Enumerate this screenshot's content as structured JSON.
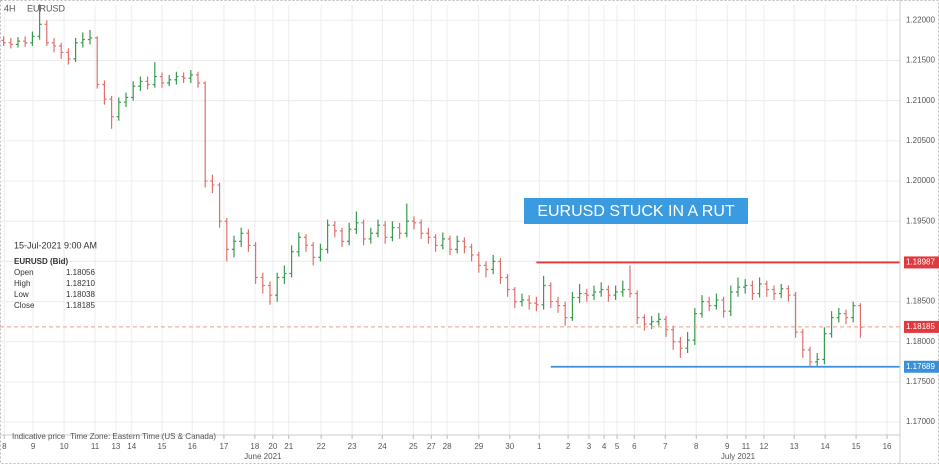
{
  "chart_data": {
    "type": "ohlc",
    "timeframe": "4H",
    "symbol": "EURUSD",
    "annotation": "EURUSD STUCK IN A RUT",
    "footer": [
      "Indicative price",
      "Time Zone: Eastern Time (US & Canada)"
    ],
    "info": {
      "datetime": "15-Jul-2021 9:00 AM",
      "instrument": "EURUSD (Bid)",
      "rows": [
        {
          "label": "Open",
          "value": "1.18056"
        },
        {
          "label": "High",
          "value": "1.18210"
        },
        {
          "label": "Low",
          "value": "1.18038"
        },
        {
          "label": "Close",
          "value": "1.18185"
        }
      ]
    },
    "up_color": "#3a9a4e",
    "down_color": "#e0706e",
    "grid": true,
    "ylim": [
      1.1684,
      1.2219
    ],
    "yticks": [
      {
        "value": 1.17,
        "label": "1.17000"
      },
      {
        "value": 1.175,
        "label": "1.17500"
      },
      {
        "value": 1.18,
        "label": "1.18000"
      },
      {
        "value": 1.185,
        "label": "1.18500"
      },
      {
        "value": 1.19,
        "label": "1.19000"
      },
      {
        "value": 1.195,
        "label": "1.19500"
      },
      {
        "value": 1.2,
        "label": "1.20000"
      },
      {
        "value": 1.205,
        "label": "1.20500"
      },
      {
        "value": 1.21,
        "label": "1.21000"
      },
      {
        "value": 1.215,
        "label": "1.21500"
      },
      {
        "value": 1.22,
        "label": "1.22000"
      }
    ],
    "xlim": [
      -0.5,
      124.5
    ],
    "xticks": [
      {
        "value": 0.1,
        "label": "8"
      },
      {
        "value": 4.1,
        "label": "9"
      },
      {
        "value": 8.4,
        "label": "10"
      },
      {
        "value": 12.7,
        "label": "11"
      },
      {
        "value": 15.6,
        "label": "13"
      },
      {
        "value": 17.8,
        "label": "14"
      },
      {
        "value": 22,
        "label": "15"
      },
      {
        "value": 26.2,
        "label": "16"
      },
      {
        "value": 30.6,
        "label": "17"
      },
      {
        "value": 34.9,
        "label": "18"
      },
      {
        "value": 37.4,
        "label": "20"
      },
      {
        "value": 39.6,
        "label": "21"
      },
      {
        "value": 44.1,
        "label": "22"
      },
      {
        "value": 48.4,
        "label": "23"
      },
      {
        "value": 52.6,
        "label": "24"
      },
      {
        "value": 56.9,
        "label": "25"
      },
      {
        "value": 59.4,
        "label": "27"
      },
      {
        "value": 61.6,
        "label": "28"
      },
      {
        "value": 66,
        "label": "29"
      },
      {
        "value": 70.3,
        "label": "30"
      },
      {
        "value": 74.4,
        "label": "1"
      },
      {
        "value": 78.4,
        "label": "2"
      },
      {
        "value": 81.3,
        "label": "3"
      },
      {
        "value": 83.4,
        "label": "4"
      },
      {
        "value": 85.2,
        "label": "5"
      },
      {
        "value": 87.6,
        "label": "6"
      },
      {
        "value": 91.9,
        "label": "7"
      },
      {
        "value": 96.2,
        "label": "8"
      },
      {
        "value": 100.5,
        "label": "9"
      },
      {
        "value": 103.1,
        "label": "11"
      },
      {
        "value": 105.6,
        "label": "12"
      },
      {
        "value": 109.8,
        "label": "13"
      },
      {
        "value": 114.1,
        "label": "14"
      },
      {
        "value": 118.4,
        "label": "15"
      },
      {
        "value": 122.7,
        "label": "16"
      }
    ],
    "months": [
      {
        "value": 36,
        "label": "June 2021"
      },
      {
        "value": 102,
        "label": "July 2021"
      }
    ],
    "levels": [
      {
        "value": 1.18987,
        "color": "#e0393e",
        "x_start": 74,
        "style": "solid"
      },
      {
        "value": 1.18185,
        "color": "#e0393e",
        "style": "dashed"
      },
      {
        "value": 1.17689,
        "color": "#3a8fd8",
        "x_start": 76,
        "style": "solid"
      }
    ],
    "candles": [
      [
        1.2175,
        1.218,
        1.2168,
        1.2172
      ],
      [
        1.2172,
        1.2178,
        1.2165,
        1.217
      ],
      [
        1.217,
        1.2179,
        1.2166,
        1.2174
      ],
      [
        1.2174,
        1.218,
        1.2167,
        1.2172
      ],
      [
        1.2172,
        1.2186,
        1.2168,
        1.218
      ],
      [
        1.218,
        1.222,
        1.2176,
        1.2195
      ],
      [
        1.2195,
        1.22,
        1.2168,
        1.2172
      ],
      [
        1.2172,
        1.2178,
        1.216,
        1.2168
      ],
      [
        1.2168,
        1.2172,
        1.2152,
        1.216
      ],
      [
        1.216,
        1.2165,
        1.2145,
        1.2152
      ],
      [
        1.2152,
        1.2178,
        1.2148,
        1.2172
      ],
      [
        1.2172,
        1.2185,
        1.2166,
        1.2176
      ],
      [
        1.2176,
        1.2188,
        1.217,
        1.2178
      ],
      [
        1.2178,
        1.218,
        1.2115,
        1.212
      ],
      [
        1.212,
        1.2125,
        1.2095,
        1.2102
      ],
      [
        1.2102,
        1.2106,
        1.2065,
        1.208
      ],
      [
        1.208,
        1.2104,
        1.2075,
        1.2098
      ],
      [
        1.2098,
        1.211,
        1.2092,
        1.2104
      ],
      [
        1.2104,
        1.2124,
        1.21,
        1.2118
      ],
      [
        1.2118,
        1.213,
        1.2112,
        1.2124
      ],
      [
        1.2124,
        1.213,
        1.2114,
        1.212
      ],
      [
        1.212,
        1.2148,
        1.2116,
        1.213
      ],
      [
        1.213,
        1.2135,
        1.2116,
        1.2122
      ],
      [
        1.2122,
        1.2132,
        1.2118,
        1.2126
      ],
      [
        1.2126,
        1.2136,
        1.212,
        1.213
      ],
      [
        1.213,
        1.2135,
        1.2122,
        1.2128
      ],
      [
        1.2128,
        1.2138,
        1.2122,
        1.2132
      ],
      [
        1.2132,
        1.2136,
        1.2116,
        1.2122
      ],
      [
        1.2122,
        1.2124,
        1.1992,
        1.2
      ],
      [
        1.2,
        1.2008,
        1.1985,
        1.1995
      ],
      [
        1.1995,
        1.1998,
        1.1942,
        1.195
      ],
      [
        1.195,
        1.1954,
        1.19,
        1.1915
      ],
      [
        1.1915,
        1.1932,
        1.1905,
        1.1925
      ],
      [
        1.1925,
        1.1942,
        1.1918,
        1.1935
      ],
      [
        1.1935,
        1.194,
        1.1912,
        1.192
      ],
      [
        1.192,
        1.1924,
        1.1872,
        1.188
      ],
      [
        1.188,
        1.1886,
        1.186,
        1.187
      ],
      [
        1.187,
        1.1875,
        1.1846,
        1.1858
      ],
      [
        1.1858,
        1.1886,
        1.185,
        1.188
      ],
      [
        1.188,
        1.1895,
        1.1872,
        1.1885
      ],
      [
        1.1885,
        1.192,
        1.188,
        1.1912
      ],
      [
        1.1912,
        1.1936,
        1.1906,
        1.193
      ],
      [
        1.193,
        1.1934,
        1.1912,
        1.192
      ],
      [
        1.192,
        1.1924,
        1.1895,
        1.1905
      ],
      [
        1.1905,
        1.1922,
        1.19,
        1.1915
      ],
      [
        1.1915,
        1.1952,
        1.191,
        1.1945
      ],
      [
        1.1945,
        1.195,
        1.193,
        1.1938
      ],
      [
        1.1938,
        1.1942,
        1.1918,
        1.1925
      ],
      [
        1.1925,
        1.1948,
        1.192,
        1.194
      ],
      [
        1.194,
        1.1962,
        1.1934,
        1.1948
      ],
      [
        1.1948,
        1.1952,
        1.192,
        1.1928
      ],
      [
        1.1928,
        1.1942,
        1.1922,
        1.1935
      ],
      [
        1.1935,
        1.1952,
        1.193,
        1.1945
      ],
      [
        1.1945,
        1.195,
        1.1922,
        1.193
      ],
      [
        1.193,
        1.195,
        1.1925,
        1.1942
      ],
      [
        1.1942,
        1.1948,
        1.1928,
        1.1935
      ],
      [
        1.1935,
        1.1972,
        1.193,
        1.195
      ],
      [
        1.195,
        1.1956,
        1.194,
        1.1948
      ],
      [
        1.1948,
        1.1952,
        1.1928,
        1.1935
      ],
      [
        1.1935,
        1.1942,
        1.1922,
        1.193
      ],
      [
        1.193,
        1.1934,
        1.1912,
        1.192
      ],
      [
        1.192,
        1.1936,
        1.1915,
        1.1928
      ],
      [
        1.1928,
        1.1932,
        1.1908,
        1.1915
      ],
      [
        1.1915,
        1.1932,
        1.191,
        1.1925
      ],
      [
        1.1925,
        1.193,
        1.191,
        1.1918
      ],
      [
        1.1918,
        1.1922,
        1.19,
        1.1908
      ],
      [
        1.1908,
        1.1912,
        1.1886,
        1.1895
      ],
      [
        1.1895,
        1.19,
        1.188,
        1.189
      ],
      [
        1.189,
        1.1908,
        1.1884,
        1.19
      ],
      [
        1.19,
        1.1904,
        1.1872,
        1.188
      ],
      [
        1.188,
        1.1884,
        1.1856,
        1.1865
      ],
      [
        1.1865,
        1.1868,
        1.1842,
        1.185
      ],
      [
        1.185,
        1.186,
        1.1844,
        1.1852
      ],
      [
        1.1852,
        1.1858,
        1.184,
        1.1848
      ],
      [
        1.1848,
        1.1856,
        1.1838,
        1.1846
      ],
      [
        1.1846,
        1.1882,
        1.184,
        1.187
      ],
      [
        1.187,
        1.1874,
        1.1842,
        1.185
      ],
      [
        1.185,
        1.1856,
        1.1836,
        1.1845
      ],
      [
        1.1845,
        1.185,
        1.182,
        1.183
      ],
      [
        1.183,
        1.1862,
        1.1826,
        1.1855
      ],
      [
        1.1855,
        1.1872,
        1.1848,
        1.186
      ],
      [
        1.186,
        1.1866,
        1.185,
        1.1858
      ],
      [
        1.1858,
        1.187,
        1.1852,
        1.1862
      ],
      [
        1.1862,
        1.1874,
        1.1856,
        1.1865
      ],
      [
        1.1865,
        1.187,
        1.185,
        1.1858
      ],
      [
        1.1858,
        1.187,
        1.1852,
        1.1862
      ],
      [
        1.1862,
        1.1876,
        1.1856,
        1.1865
      ],
      [
        1.1865,
        1.1895,
        1.1855,
        1.186
      ],
      [
        1.186,
        1.1864,
        1.1822,
        1.183
      ],
      [
        1.183,
        1.1834,
        1.1814,
        1.1822
      ],
      [
        1.1822,
        1.1832,
        1.1816,
        1.1825
      ],
      [
        1.1825,
        1.1836,
        1.182,
        1.1828
      ],
      [
        1.1828,
        1.1832,
        1.1806,
        1.1815
      ],
      [
        1.1815,
        1.182,
        1.179,
        1.18
      ],
      [
        1.18,
        1.1806,
        1.178,
        1.1792
      ],
      [
        1.1792,
        1.1812,
        1.1786,
        1.1802
      ],
      [
        1.1802,
        1.1842,
        1.1796,
        1.1835
      ],
      [
        1.1835,
        1.1858,
        1.183,
        1.185
      ],
      [
        1.185,
        1.1856,
        1.1838,
        1.1845
      ],
      [
        1.1845,
        1.186,
        1.184,
        1.1852
      ],
      [
        1.1852,
        1.1856,
        1.183,
        1.1838
      ],
      [
        1.1838,
        1.187,
        1.1832,
        1.1862
      ],
      [
        1.1862,
        1.188,
        1.1856,
        1.1868
      ],
      [
        1.1868,
        1.1878,
        1.186,
        1.187
      ],
      [
        1.187,
        1.1876,
        1.1852,
        1.186
      ],
      [
        1.186,
        1.188,
        1.1855,
        1.1872
      ],
      [
        1.1872,
        1.1876,
        1.1856,
        1.1865
      ],
      [
        1.1865,
        1.187,
        1.1852,
        1.186
      ],
      [
        1.186,
        1.1872,
        1.1854,
        1.1866
      ],
      [
        1.1866,
        1.187,
        1.185,
        1.1858
      ],
      [
        1.1858,
        1.1862,
        1.1805,
        1.1812
      ],
      [
        1.1812,
        1.1816,
        1.178,
        1.179
      ],
      [
        1.179,
        1.1794,
        1.1769,
        1.1775
      ],
      [
        1.1775,
        1.1786,
        1.177,
        1.1778
      ],
      [
        1.1778,
        1.1818,
        1.1772,
        1.181
      ],
      [
        1.181,
        1.1838,
        1.1805,
        1.183
      ],
      [
        1.183,
        1.1842,
        1.1824,
        1.1835
      ],
      [
        1.1835,
        1.184,
        1.1822,
        1.183
      ],
      [
        1.183,
        1.185,
        1.1824,
        1.1845
      ],
      [
        1.1845,
        1.1848,
        1.1805,
        1.1818
      ]
    ]
  }
}
